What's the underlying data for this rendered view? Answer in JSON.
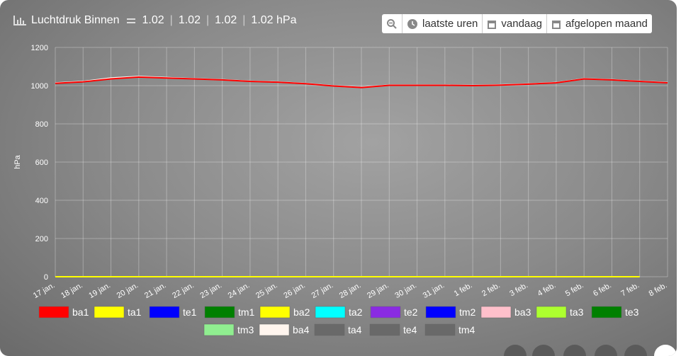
{
  "header": {
    "title": "Luchtdruk Binnen",
    "readings": [
      "1.02",
      "1.02",
      "1.02",
      "1.02 hPa"
    ],
    "separator": "|"
  },
  "buttons": [
    "laatste uren",
    "vandaag",
    "afgelopen maand"
  ],
  "chart_data": {
    "type": "line",
    "y_label": "hPa",
    "categories": [
      "17 jan.",
      "18 jan.",
      "19 jan.",
      "20 jan.",
      "21 jan.",
      "22 jan.",
      "23 jan.",
      "24 jan.",
      "25 jan.",
      "26 jan.",
      "27 jan.",
      "28 jan.",
      "29 jan.",
      "30 jan.",
      "31 jan.",
      "1 feb.",
      "2 feb.",
      "3 feb.",
      "4 feb.",
      "5 feb.",
      "6 feb.",
      "7 feb.",
      "8 feb."
    ],
    "ylim": [
      0,
      1200
    ],
    "yticks": [
      0,
      200,
      400,
      600,
      800,
      1000,
      1200
    ],
    "grid": true,
    "series": [
      {
        "name": "ba1",
        "color": "#ff0000",
        "values": [
          1012,
          1020,
          1035,
          1045,
          1040,
          1035,
          1030,
          1022,
          1018,
          1010,
          998,
          990,
          1002,
          1002,
          1002,
          1000,
          1003,
          1008,
          1015,
          1035,
          1030,
          1022,
          1015
        ]
      },
      {
        "name": "ta1",
        "color": "#ffff00",
        "values": [
          0,
          0,
          0,
          0,
          0,
          0,
          0,
          0,
          0,
          0,
          0,
          0,
          0,
          0,
          0,
          0,
          0,
          0,
          0,
          0,
          0,
          0,
          null
        ]
      },
      {
        "name": "te1",
        "color": "#0000ff",
        "values": [
          null,
          null,
          null,
          null,
          null,
          null,
          null,
          null,
          null,
          null,
          null,
          null,
          null,
          null,
          null,
          null,
          null,
          null,
          null,
          null,
          null,
          null,
          null
        ]
      },
      {
        "name": "tm1",
        "color": "#008000",
        "values": [
          null,
          null,
          null,
          null,
          null,
          null,
          null,
          null,
          null,
          null,
          null,
          null,
          null,
          null,
          null,
          null,
          null,
          null,
          null,
          null,
          null,
          null,
          null
        ]
      },
      {
        "name": "ba2",
        "color": "#ffff00",
        "values": [
          null,
          null,
          null,
          null,
          null,
          null,
          null,
          null,
          null,
          null,
          null,
          null,
          null,
          null,
          null,
          null,
          null,
          null,
          null,
          null,
          null,
          null,
          null
        ]
      },
      {
        "name": "ta2",
        "color": "#00ffff",
        "values": [
          null,
          null,
          null,
          null,
          null,
          null,
          null,
          null,
          null,
          null,
          null,
          null,
          null,
          null,
          null,
          null,
          null,
          null,
          null,
          null,
          null,
          null,
          null
        ]
      },
      {
        "name": "te2",
        "color": "#8a2be2",
        "values": [
          null,
          null,
          null,
          null,
          null,
          null,
          null,
          null,
          null,
          null,
          null,
          null,
          null,
          null,
          null,
          null,
          null,
          null,
          null,
          null,
          null,
          null,
          null
        ]
      },
      {
        "name": "tm2",
        "color": "#0000ff",
        "values": [
          null,
          null,
          null,
          null,
          null,
          null,
          null,
          null,
          null,
          null,
          null,
          null,
          null,
          null,
          null,
          null,
          null,
          null,
          null,
          null,
          null,
          null,
          null
        ]
      },
      {
        "name": "ba3",
        "color": "#ffc0cb",
        "values": [
          null,
          null,
          null,
          null,
          null,
          null,
          null,
          null,
          null,
          null,
          null,
          null,
          null,
          null,
          null,
          null,
          null,
          null,
          null,
          null,
          null,
          null,
          null
        ]
      },
      {
        "name": "ta3",
        "color": "#adff2f",
        "values": [
          null,
          null,
          null,
          null,
          null,
          null,
          null,
          null,
          null,
          null,
          null,
          null,
          null,
          null,
          null,
          null,
          null,
          null,
          null,
          null,
          null,
          null,
          null
        ]
      },
      {
        "name": "te3",
        "color": "#008000",
        "values": [
          null,
          null,
          null,
          null,
          null,
          null,
          null,
          null,
          null,
          null,
          null,
          null,
          null,
          null,
          null,
          null,
          null,
          null,
          null,
          null,
          null,
          null,
          null
        ]
      },
      {
        "name": "tm3",
        "color": "#90ee90",
        "values": [
          null,
          null,
          null,
          null,
          null,
          null,
          null,
          null,
          null,
          null,
          null,
          null,
          null,
          null,
          null,
          null,
          null,
          null,
          null,
          null,
          null,
          null,
          null
        ]
      },
      {
        "name": "ba4",
        "color": "#fff5ee",
        "values": [
          1014,
          1022,
          1040,
          1048,
          1042,
          1036,
          1031,
          1023,
          1019,
          1011,
          999,
          991,
          1003,
          1003,
          1003,
          1001,
          1004,
          1009,
          1016,
          1036,
          1031,
          1023,
          1016
        ]
      },
      {
        "name": "ta4",
        "color": "#696969",
        "values": [
          null,
          null,
          null,
          null,
          null,
          null,
          null,
          null,
          null,
          null,
          null,
          null,
          null,
          null,
          null,
          null,
          null,
          null,
          null,
          null,
          null,
          null,
          null
        ]
      },
      {
        "name": "te4",
        "color": "#696969",
        "values": [
          null,
          null,
          null,
          null,
          null,
          null,
          null,
          null,
          null,
          null,
          null,
          null,
          null,
          null,
          null,
          null,
          null,
          null,
          null,
          null,
          null,
          null,
          null
        ]
      },
      {
        "name": "tm4",
        "color": "#696969",
        "values": [
          null,
          null,
          null,
          null,
          null,
          null,
          null,
          null,
          null,
          null,
          null,
          null,
          null,
          null,
          null,
          null,
          null,
          null,
          null,
          null,
          null,
          null,
          null
        ]
      }
    ]
  }
}
